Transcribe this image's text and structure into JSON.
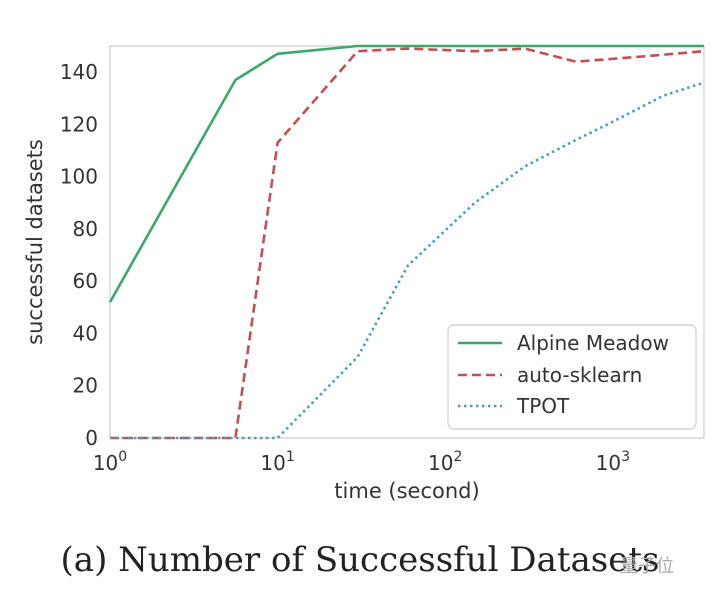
{
  "caption": "(a) Number of Successful Datasets",
  "watermark": "量子位",
  "chart_data": {
    "type": "line",
    "xlabel": "time (second)",
    "ylabel": "successful datasets",
    "xscale": "log",
    "xlim": [
      1,
      3500
    ],
    "ylim": [
      0,
      150
    ],
    "yticks": [
      0,
      20,
      40,
      60,
      80,
      100,
      120,
      140
    ],
    "xticks": [
      {
        "value": 1,
        "base": "10",
        "exp": "0"
      },
      {
        "value": 10,
        "base": "10",
        "exp": "1"
      },
      {
        "value": 100,
        "base": "10",
        "exp": "2"
      },
      {
        "value": 1000,
        "base": "10",
        "exp": "3"
      }
    ],
    "legend_position": "lower-right",
    "series": [
      {
        "name": "Alpine Meadow",
        "color": "#3aa86b",
        "dash": "solid",
        "x": [
          1,
          5.6,
          10,
          30,
          100,
          1000,
          3500
        ],
        "y": [
          52,
          137,
          147,
          150,
          150,
          150,
          150
        ]
      },
      {
        "name": "auto-sklearn",
        "color": "#c44e52",
        "dash": "dashed",
        "x": [
          1,
          5.6,
          10,
          30,
          60,
          150,
          300,
          600,
          1500,
          3500
        ],
        "y": [
          0,
          0,
          113,
          148,
          149,
          148,
          149,
          144,
          146,
          148
        ]
      },
      {
        "name": "TPOT",
        "color": "#4c9fb8",
        "dash": "dotted",
        "x": [
          1,
          10,
          30,
          60,
          150,
          300,
          600,
          1000,
          2000,
          3500
        ],
        "y": [
          0,
          0,
          31,
          66,
          90,
          104,
          114,
          121,
          131,
          136
        ]
      }
    ]
  }
}
